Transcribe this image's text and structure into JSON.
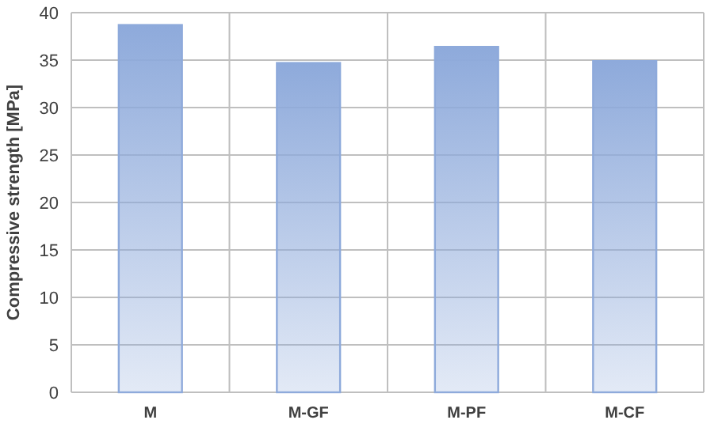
{
  "chart_data": {
    "type": "bar",
    "ylabel": "Compressive strength [MPa]",
    "categories": [
      "M",
      "M-GF",
      "M-PF",
      "M-CF"
    ],
    "values": [
      38.7,
      34.7,
      36.4,
      34.9
    ],
    "color": "#8eaadb",
    "ylim": [
      0,
      40
    ],
    "yticks": [
      0,
      5,
      10,
      15,
      20,
      25,
      30,
      35,
      40
    ],
    "grid": true
  }
}
